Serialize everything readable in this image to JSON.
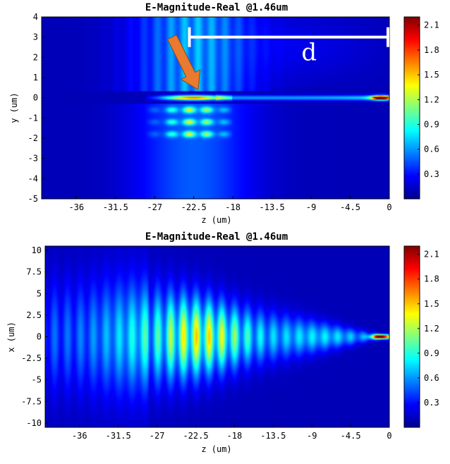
{
  "chart_data": [
    {
      "type": "heatmap",
      "title": "E-Magnitude-Real @1.46um",
      "xlabel": "z (um)",
      "ylabel": "y (um)",
      "xlim": [
        -40,
        0
      ],
      "ylim": [
        -5,
        4
      ],
      "x_ticks": [
        -36,
        -31.5,
        -27,
        -22.5,
        -18,
        -13.5,
        -9,
        -4.5,
        0
      ],
      "y_ticks": [
        -5,
        -4,
        -3,
        -2,
        -1,
        0,
        1,
        2,
        3,
        4
      ],
      "colorbar": {
        "min": 0,
        "max": 2.2,
        "ticks": [
          0.3,
          0.6,
          0.9,
          1.2,
          1.5,
          1.8,
          2.1
        ],
        "colormap": "jet"
      },
      "field": {
        "grating_z": [
          -25,
          -20
        ],
        "waveguide_y": 0,
        "hotspot_z": -1,
        "hotspot_value": 2.15,
        "grating_peak_value": 1.6,
        "upward_beam_value": 0.75
      },
      "annotation": {
        "label": "d",
        "bar_y": 3,
        "bar_z_start": -23,
        "bar_z_end": 0,
        "arrow_from": [
          -25,
          3
        ],
        "arrow_to": [
          -22,
          0.4
        ],
        "arrow_color": "#E97A30"
      }
    },
    {
      "type": "heatmap",
      "title": "E-Magnitude-Real @1.46um",
      "xlabel": "z (um)",
      "ylabel": "x (um)",
      "xlim": [
        -40,
        0
      ],
      "ylim": [
        -10.5,
        10.5
      ],
      "x_ticks": [
        -36,
        -31.5,
        -27,
        -22.5,
        -18,
        -13.5,
        -9,
        -4.5,
        0
      ],
      "y_ticks": [
        -10,
        -7.5,
        -5,
        -2.5,
        0,
        2.5,
        5,
        7.5,
        10
      ],
      "colorbar": {
        "min": 0,
        "max": 2.2,
        "ticks": [
          0.3,
          0.6,
          0.9,
          1.2,
          1.5,
          1.8,
          2.1
        ],
        "colormap": "jet"
      },
      "field": {
        "taper_start_z": -28,
        "taper_end_z": -1,
        "taper_half_width_start": 5.5,
        "taper_half_width_end": 0.3,
        "grating_peak_z": -22,
        "hotspot_value": 2.15,
        "grating_peak_value": 1.4
      }
    }
  ]
}
